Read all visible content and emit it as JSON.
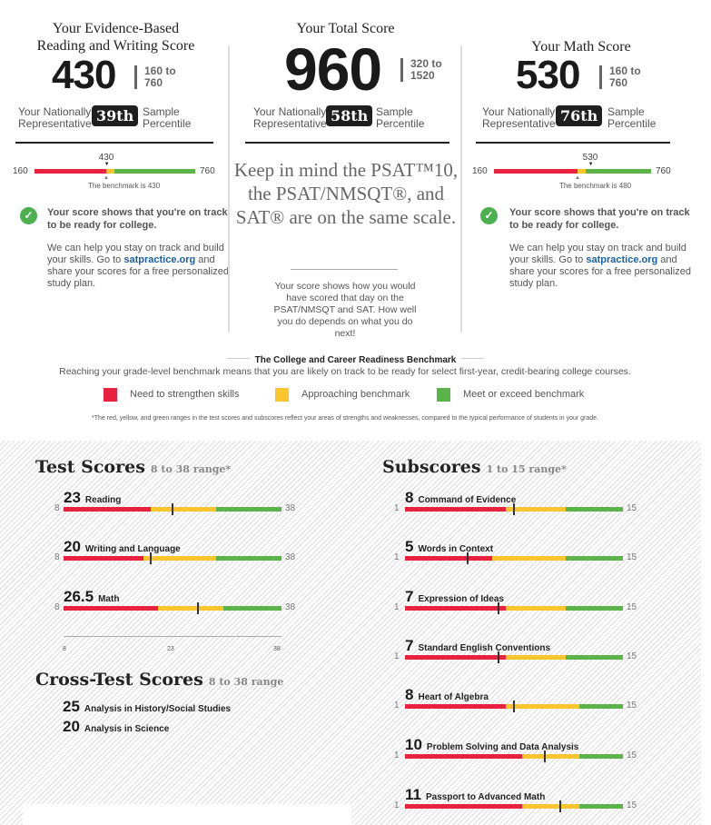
{
  "colors": {
    "red": "#e8213f",
    "yellow": "#fbc52d",
    "green": "#5bb34a",
    "dark": "#1f1f1f",
    "link": "#1a5fa8"
  },
  "erw": {
    "title1": "Your Evidence-Based",
    "title2": "Reading and Writing Score",
    "score": "430",
    "range1": "160 to",
    "range2": "760",
    "pct_left1": "Your Nationally",
    "pct_left2": "Representative",
    "percentile": "39th",
    "pct_right1": "Sample",
    "pct_right2": "Percentile",
    "bar": {
      "min": 160,
      "max": 760,
      "red_end": 428,
      "yellow_end": 458,
      "score": 430,
      "min_label": "160",
      "max_label": "760",
      "score_label": "430",
      "benchmark_text": "The benchmark is 430"
    },
    "track": "Your score shows that you're on track to be ready for college.",
    "help_pre": "We can help you stay on track and build your skills. Go to ",
    "link": "satpractice.org",
    "help_post": " and share your scores for a free personalized study plan."
  },
  "total": {
    "title": "Your Total Score",
    "score": "960",
    "range1": "320 to",
    "range2": "1520",
    "pct_left1": "Your Nationally",
    "pct_left2": "Representative",
    "percentile": "58th",
    "pct_right1": "Sample",
    "pct_right2": "Percentile",
    "keep_in_mind": "Keep in mind the PSAT™10, the PSAT/NMSQT®, and SAT® are on the same scale.",
    "note": "Your score shows how you would have scored that day on the PSAT/NMSQT and SAT. How well you do depends on what you do next!"
  },
  "math": {
    "title": "Your Math Score",
    "score": "530",
    "range1": "160 to",
    "range2": "760",
    "pct_left1": "Your Nationally",
    "pct_left2": "Representative",
    "percentile": "76th",
    "pct_right1": "Sample",
    "pct_right2": "Percentile",
    "bar": {
      "min": 160,
      "max": 760,
      "red_end": 479,
      "yellow_end": 510,
      "score": 530,
      "min_label": "160",
      "max_label": "760",
      "score_label": "530",
      "benchmark_text": "The benchmark is 480"
    },
    "track": "Your score shows that you're on track to be ready for college.",
    "help_pre": "We can help you stay on track and build your skills. Go to ",
    "link": "satpractice.org",
    "help_post": " and share your scores for a free personalized study plan."
  },
  "benchmark": {
    "title": "The College and Career Readiness Benchmark",
    "desc": "Reaching your grade-level benchmark means that you are likely on track to be ready for select first-year, credit-bearing college courses.",
    "legend": [
      {
        "label": "Need to strengthen skills",
        "color": "#e8213f"
      },
      {
        "label": "Approaching benchmark",
        "color": "#fbc52d"
      },
      {
        "label": "Meet or exceed benchmark",
        "color": "#5bb34a"
      }
    ],
    "footnote": "*The red, yellow, and green ranges in the test scores and subscores reflect your areas of strengths and weaknesses, compared to the typical performance of students in your grade."
  },
  "test_scores": {
    "title": "Test Scores",
    "range": "8 to 38 range*",
    "min": 8,
    "max": 38,
    "min_label": "8",
    "max_label": "38",
    "items": [
      {
        "score": "23",
        "value": 23,
        "label": "Reading",
        "red_end": 20,
        "yellow_end": 29
      },
      {
        "score": "20",
        "value": 20,
        "label": "Writing and Language",
        "red_end": 19,
        "yellow_end": 29
      },
      {
        "score": "26.5",
        "value": 26.5,
        "label": "Math",
        "red_end": 21,
        "yellow_end": 30
      }
    ],
    "axis_ticks": [
      "8",
      "23",
      "38"
    ]
  },
  "cross_test": {
    "title": "Cross-Test Scores",
    "range": "8 to 38 range",
    "items": [
      {
        "score": "25",
        "label": "Analysis in History/Social Studies"
      },
      {
        "score": "20",
        "label": "Analysis in Science"
      }
    ]
  },
  "subscores": {
    "title": "Subscores",
    "range": "1 to 15 range*",
    "min": 1,
    "max": 15,
    "min_label": "1",
    "max_label": "15",
    "items": [
      {
        "score": "8",
        "value": 8,
        "label": "Command of Evidence",
        "red_end": 7.5,
        "yellow_end": 11.3
      },
      {
        "score": "5",
        "value": 5,
        "label": "Words in Context",
        "red_end": 6.6,
        "yellow_end": 11.3
      },
      {
        "score": "7",
        "value": 7,
        "label": "Expression of Ideas",
        "red_end": 7.5,
        "yellow_end": 11.3
      },
      {
        "score": "7",
        "value": 7,
        "label": "Standard English Conventions",
        "red_end": 7.5,
        "yellow_end": 11.3
      },
      {
        "score": "8",
        "value": 8,
        "label": "Heart of Algebra",
        "red_end": 7.5,
        "yellow_end": 12.2
      },
      {
        "score": "10",
        "value": 10,
        "label": "Problem Solving and Data Analysis",
        "red_end": 8.5,
        "yellow_end": 12.2
      },
      {
        "score": "11",
        "value": 11,
        "label": "Passport to Advanced Math",
        "red_end": 8.5,
        "yellow_end": 12.2
      }
    ]
  }
}
